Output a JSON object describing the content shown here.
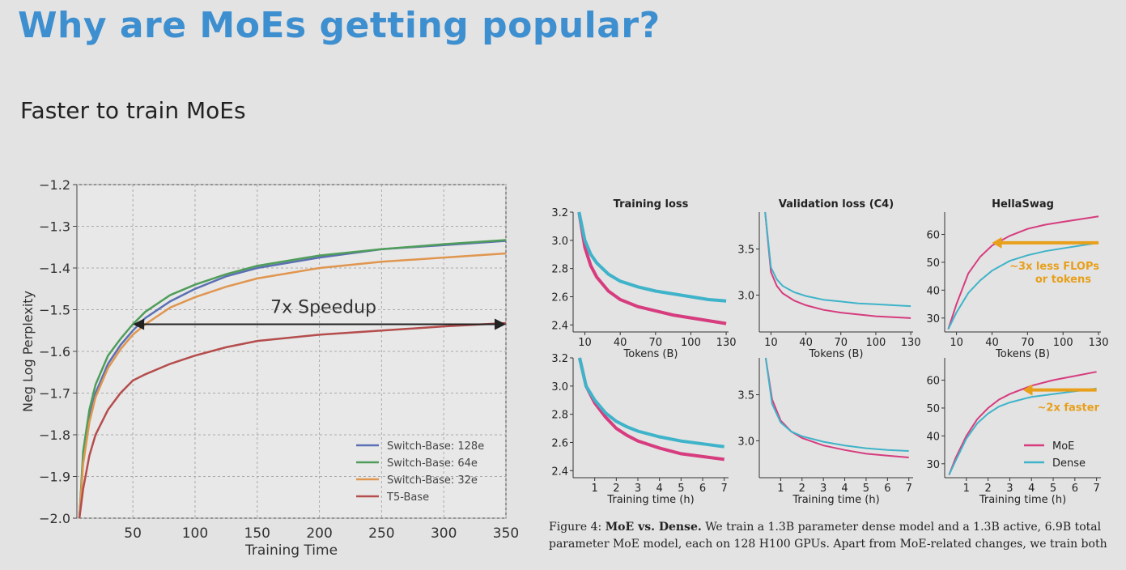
{
  "slide": {
    "title": "Why are MoEs getting popular?",
    "subtitle": "Faster to train MoEs"
  },
  "caption": {
    "figure_label": "Figure 4:",
    "bold_part": "MoE vs. Dense.",
    "text": "We train a 1.3B parameter dense model and a 1.3B active, 6.9B total parameter MoE model, each on 128 H100 GPUs. Apart from MoE-related changes, we train both"
  },
  "chart_data": [
    {
      "type": "line",
      "title": "",
      "xlabel": "Training Time",
      "ylabel": "Neg Log Perplexity",
      "xlim": [
        5,
        350
      ],
      "ylim": [
        -2.0,
        -1.2
      ],
      "xticks": [
        "50",
        "100",
        "150",
        "200",
        "250",
        "300",
        "350"
      ],
      "yticks": [
        "-1.2",
        "-1.3",
        "-1.4",
        "-1.5",
        "-1.6",
        "-1.7",
        "-1.8",
        "-1.9",
        "-2.0"
      ],
      "grid": true,
      "legend_position": "bottom-right",
      "annotation": {
        "text": "7x Speedup",
        "from_x": 50,
        "to_x": 350,
        "y": -1.535
      },
      "series": [
        {
          "name": "Switch-Base: 128e",
          "color": "#5b6fb4",
          "x": [
            7,
            10,
            15,
            20,
            30,
            40,
            50,
            60,
            80,
            100,
            125,
            150,
            200,
            250,
            300,
            350
          ],
          "y": [
            -2.0,
            -1.86,
            -1.76,
            -1.7,
            -1.63,
            -1.585,
            -1.55,
            -1.52,
            -1.48,
            -1.45,
            -1.42,
            -1.4,
            -1.375,
            -1.355,
            -1.345,
            -1.335
          ]
        },
        {
          "name": "Switch-Base: 64e",
          "color": "#4f9d5a",
          "x": [
            7,
            10,
            15,
            20,
            30,
            40,
            50,
            60,
            80,
            100,
            125,
            150,
            200,
            250,
            300,
            350
          ],
          "y": [
            -2.0,
            -1.84,
            -1.74,
            -1.68,
            -1.61,
            -1.57,
            -1.535,
            -1.505,
            -1.465,
            -1.44,
            -1.415,
            -1.395,
            -1.37,
            -1.355,
            -1.343,
            -1.333
          ]
        },
        {
          "name": "Switch-Base: 32e",
          "color": "#e0964f",
          "x": [
            7,
            10,
            15,
            20,
            30,
            40,
            50,
            60,
            80,
            100,
            125,
            150,
            200,
            250,
            300,
            350
          ],
          "y": [
            -2.0,
            -1.87,
            -1.77,
            -1.71,
            -1.64,
            -1.595,
            -1.56,
            -1.535,
            -1.495,
            -1.47,
            -1.445,
            -1.425,
            -1.4,
            -1.385,
            -1.375,
            -1.365
          ]
        },
        {
          "name": "T5-Base",
          "color": "#b54d4d",
          "x": [
            7,
            10,
            15,
            20,
            30,
            40,
            50,
            60,
            80,
            100,
            125,
            150,
            200,
            250,
            300,
            350
          ],
          "y": [
            -2.0,
            -1.93,
            -1.85,
            -1.8,
            -1.74,
            -1.7,
            -1.67,
            -1.655,
            -1.63,
            -1.61,
            -1.59,
            -1.575,
            -1.56,
            -1.55,
            -1.54,
            -1.532
          ]
        }
      ]
    },
    {
      "type": "line",
      "title": "Training loss",
      "xlabel": "Tokens (B)",
      "ylabel": "",
      "xlim": [
        0,
        132
      ],
      "ylim": [
        2.35,
        3.2
      ],
      "xticks": [
        "10",
        "40",
        "70",
        "100",
        "130"
      ],
      "yticks": [
        "3.2",
        "3.0",
        "2.8",
        "2.6",
        "2.4"
      ],
      "series": [
        {
          "name": "MoE",
          "x": [
            5,
            10,
            15,
            20,
            30,
            40,
            55,
            70,
            85,
            100,
            115,
            130
          ],
          "y": [
            3.2,
            2.95,
            2.82,
            2.74,
            2.64,
            2.58,
            2.53,
            2.5,
            2.47,
            2.45,
            2.43,
            2.41
          ]
        },
        {
          "name": "Dense",
          "x": [
            5,
            10,
            15,
            20,
            30,
            40,
            55,
            70,
            85,
            100,
            115,
            130
          ],
          "y": [
            3.2,
            3.0,
            2.9,
            2.84,
            2.76,
            2.71,
            2.67,
            2.64,
            2.62,
            2.6,
            2.58,
            2.57
          ]
        }
      ]
    },
    {
      "type": "line",
      "title": "Validation loss (C4)",
      "xlabel": "Tokens (B)",
      "ylabel": "",
      "xlim": [
        0,
        132
      ],
      "ylim": [
        2.6,
        3.9
      ],
      "xticks": [
        "10",
        "40",
        "70",
        "100",
        "130"
      ],
      "yticks": [
        "3.5",
        "3.0"
      ],
      "series": [
        {
          "name": "MoE",
          "x": [
            5,
            10,
            15,
            20,
            30,
            40,
            55,
            70,
            85,
            100,
            115,
            130
          ],
          "y": [
            3.9,
            3.25,
            3.1,
            3.02,
            2.94,
            2.89,
            2.84,
            2.81,
            2.79,
            2.77,
            2.76,
            2.75
          ]
        },
        {
          "name": "Dense",
          "x": [
            5,
            10,
            15,
            20,
            30,
            40,
            55,
            70,
            85,
            100,
            115,
            130
          ],
          "y": [
            3.9,
            3.3,
            3.17,
            3.1,
            3.03,
            2.99,
            2.95,
            2.93,
            2.91,
            2.9,
            2.89,
            2.88
          ]
        }
      ]
    },
    {
      "type": "line",
      "title": "HellaSwag",
      "xlabel": "Tokens (B)",
      "ylabel": "",
      "xlim": [
        0,
        132
      ],
      "ylim": [
        25,
        68
      ],
      "xticks": [
        "10",
        "40",
        "70",
        "100",
        "130"
      ],
      "yticks": [
        "60",
        "50",
        "40",
        "30"
      ],
      "annotation": {
        "text": "~3x less FLOPs or tokens",
        "from_x": 40,
        "to_x": 130,
        "y": 57
      },
      "series": [
        {
          "name": "MoE",
          "x": [
            3,
            10,
            20,
            30,
            40,
            55,
            70,
            85,
            100,
            115,
            130
          ],
          "y": [
            26,
            35,
            46,
            52,
            56,
            59.5,
            62,
            63.5,
            64.5,
            65.5,
            66.5
          ]
        },
        {
          "name": "Dense",
          "x": [
            3,
            10,
            20,
            30,
            40,
            55,
            70,
            85,
            100,
            115,
            130
          ],
          "y": [
            26,
            32,
            39,
            43.5,
            47,
            50.5,
            52.5,
            54,
            55,
            56,
            57
          ]
        }
      ]
    },
    {
      "type": "line",
      "title": "",
      "xlabel": "Training time (h)",
      "ylabel": "",
      "xlim": [
        0,
        7.2
      ],
      "ylim": [
        2.35,
        3.2
      ],
      "xticks": [
        "1",
        "2",
        "3",
        "4",
        "5",
        "6",
        "7"
      ],
      "yticks": [
        "3.2",
        "3.0",
        "2.8",
        "2.6",
        "2.4"
      ],
      "series": [
        {
          "name": "MoE",
          "x": [
            0.3,
            0.6,
            1,
            1.5,
            2,
            2.5,
            3,
            4,
            5,
            6,
            7
          ],
          "y": [
            3.2,
            3.0,
            2.88,
            2.78,
            2.7,
            2.65,
            2.61,
            2.56,
            2.52,
            2.5,
            2.48
          ]
        },
        {
          "name": "Dense",
          "x": [
            0.3,
            0.6,
            1,
            1.5,
            2,
            2.5,
            3,
            4,
            5,
            6,
            7
          ],
          "y": [
            3.2,
            3.0,
            2.9,
            2.81,
            2.75,
            2.71,
            2.68,
            2.64,
            2.61,
            2.59,
            2.57
          ]
        }
      ]
    },
    {
      "type": "line",
      "title": "",
      "xlabel": "Training time (h)",
      "ylabel": "",
      "xlim": [
        0,
        7.2
      ],
      "ylim": [
        2.6,
        3.9
      ],
      "xticks": [
        "1",
        "2",
        "3",
        "4",
        "5",
        "6",
        "7"
      ],
      "yticks": [
        "3.5",
        "3.0"
      ],
      "series": [
        {
          "name": "MoE",
          "x": [
            0.3,
            0.6,
            1,
            1.5,
            2,
            3,
            4,
            5,
            6,
            7
          ],
          "y": [
            3.9,
            3.45,
            3.22,
            3.1,
            3.03,
            2.95,
            2.9,
            2.86,
            2.84,
            2.82
          ]
        },
        {
          "name": "Dense",
          "x": [
            0.3,
            0.6,
            1,
            1.5,
            2,
            3,
            4,
            5,
            6,
            7
          ],
          "y": [
            3.9,
            3.4,
            3.2,
            3.1,
            3.05,
            2.99,
            2.95,
            2.92,
            2.9,
            2.89
          ]
        }
      ]
    },
    {
      "type": "line",
      "title": "",
      "xlabel": "Training time (h)",
      "ylabel": "",
      "xlim": [
        0,
        7.2
      ],
      "ylim": [
        25,
        68
      ],
      "xticks": [
        "1",
        "2",
        "3",
        "4",
        "5",
        "6",
        "7"
      ],
      "yticks": [
        "60",
        "50",
        "40",
        "30"
      ],
      "annotation": {
        "text": "~2x faster",
        "from_x": 3.6,
        "to_x": 7,
        "y": 56.5
      },
      "legend": [
        "MoE",
        "Dense"
      ],
      "series": [
        {
          "name": "MoE",
          "x": [
            0.2,
            0.5,
            1,
            1.5,
            2,
            2.5,
            3,
            4,
            5,
            6,
            7
          ],
          "y": [
            26,
            32,
            40,
            46,
            50,
            53,
            55,
            58,
            60,
            61.5,
            63
          ]
        },
        {
          "name": "Dense",
          "x": [
            0.2,
            0.5,
            1,
            1.5,
            2,
            2.5,
            3,
            4,
            5,
            6,
            7
          ],
          "y": [
            26,
            31,
            39,
            44.5,
            48,
            50.5,
            52,
            54,
            55,
            56,
            57
          ]
        }
      ]
    }
  ],
  "small_chart_colors": {
    "moe": "#d63c7e",
    "dense": "#3fb3c9",
    "annotation": "#e89f1a"
  }
}
